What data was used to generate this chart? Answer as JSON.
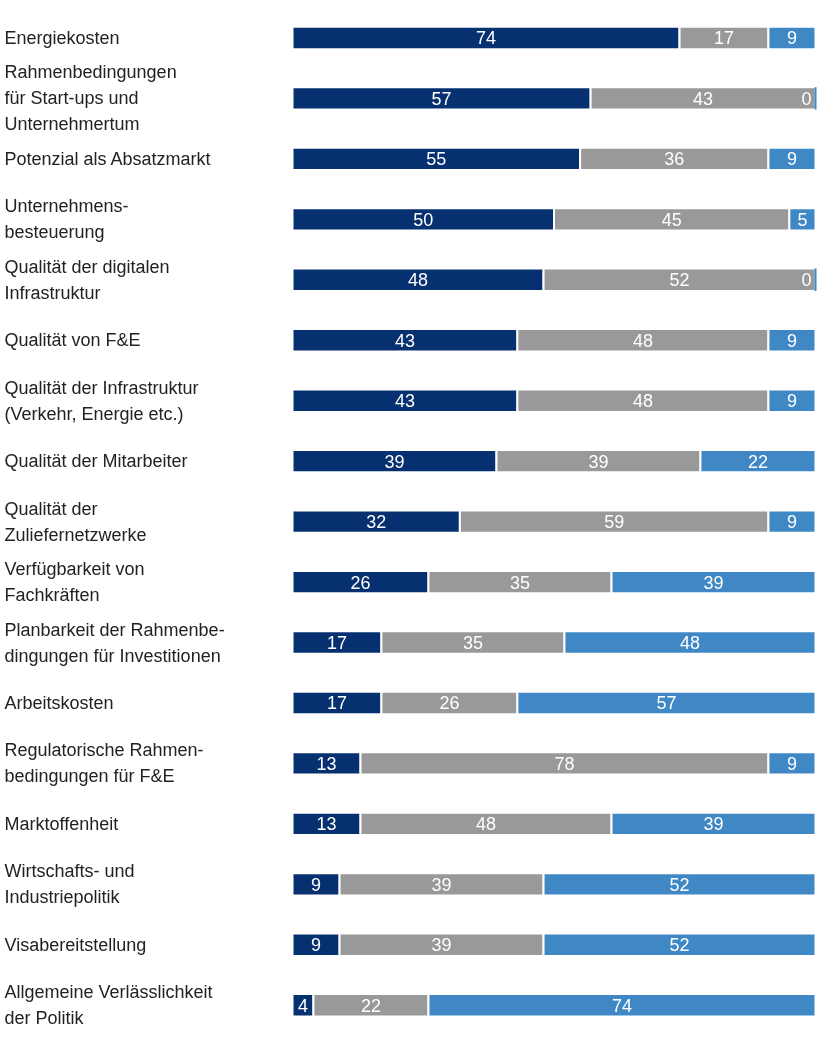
{
  "chart_data": {
    "type": "bar",
    "orientation": "horizontal",
    "stacked": true,
    "data_labels": true,
    "grid": false,
    "tick_labels": false,
    "categories": [
      "Energiekosten",
      "Rahmenbedingungen\nfür Start-ups und\nUnternehmertum",
      "Potenzial als Absatzmarkt",
      "Unternehmens-\nbesteuerung",
      "Qualität der digitalen\nInfrastruktur",
      "Qualität von F&E",
      "Qualität der Infrastruktur\n(Verkehr, Energie etc.)",
      "Qualität der Mitarbeiter",
      "Qualität der\nZuliefernetzwerke",
      "Verfügbarkeit von\nFachkräften",
      "Planbarkeit der Rahmenbe-\ndingungen für Investitionen",
      "Arbeitskosten",
      "Regulatorische Rahmen-\nbedingungen für F&E",
      "Marktoffenheit",
      "Wirtschafts- und\nIndustriepolitik",
      "Visabereitstellung",
      "Allgemeine Verlässlichkeit\nder Politik"
    ],
    "series": [
      {
        "color": "#06306f",
        "values": [
          74,
          57,
          55,
          50,
          48,
          43,
          43,
          39,
          32,
          26,
          17,
          17,
          13,
          13,
          9,
          9,
          4
        ]
      },
      {
        "color": "#999999",
        "values": [
          17,
          43,
          36,
          45,
          52,
          48,
          48,
          39,
          59,
          35,
          35,
          26,
          78,
          48,
          39,
          39,
          22
        ]
      },
      {
        "color": "#3f88c5",
        "values": [
          9,
          0,
          9,
          5,
          0,
          9,
          9,
          22,
          9,
          39,
          48,
          57,
          9,
          39,
          52,
          52,
          74
        ]
      }
    ]
  }
}
